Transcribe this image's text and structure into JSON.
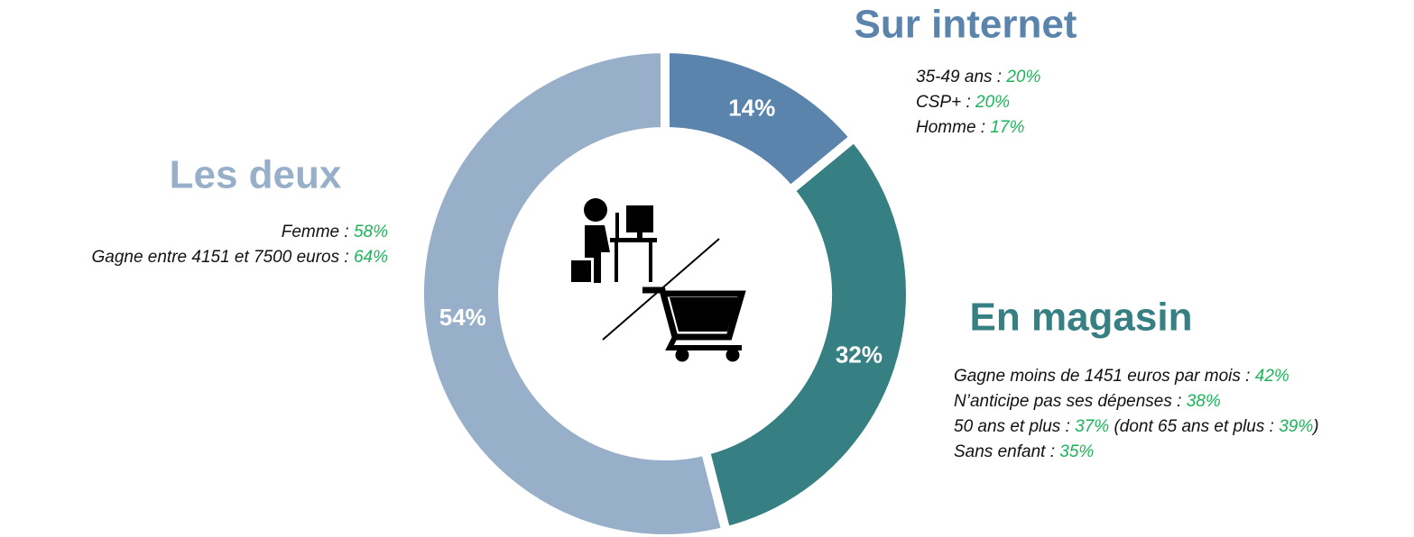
{
  "chart_data": {
    "type": "pie",
    "categories": [
      "Sur internet",
      "En magasin",
      "Les deux"
    ],
    "values": [
      14,
      32,
      54
    ],
    "value_labels": [
      "14%",
      "32%",
      "54%"
    ],
    "colors": [
      "#5b84ad",
      "#367f82",
      "#98afc9"
    ],
    "notes": [
      [
        [
          "35-49 ans : ",
          "20%"
        ],
        [
          "CSP+ : ",
          "20%"
        ],
        [
          "Homme : ",
          "17%"
        ]
      ],
      [
        [
          "Gagne moins de 1451 euros par mois : ",
          "42%"
        ],
        [
          "N’anticipe pas ses dépenses : ",
          "38%"
        ],
        [
          "50 ans et plus : ",
          "37%",
          " (dont 65 ans et plus : ",
          "39%",
          ")"
        ],
        [
          "Sans enfant : ",
          "35%"
        ]
      ],
      [
        [
          "Femme : ",
          "58%"
        ],
        [
          "Gagne entre 4151 et 7500 euros : ",
          "64%"
        ]
      ]
    ],
    "note_value_color": "#1db35a"
  }
}
